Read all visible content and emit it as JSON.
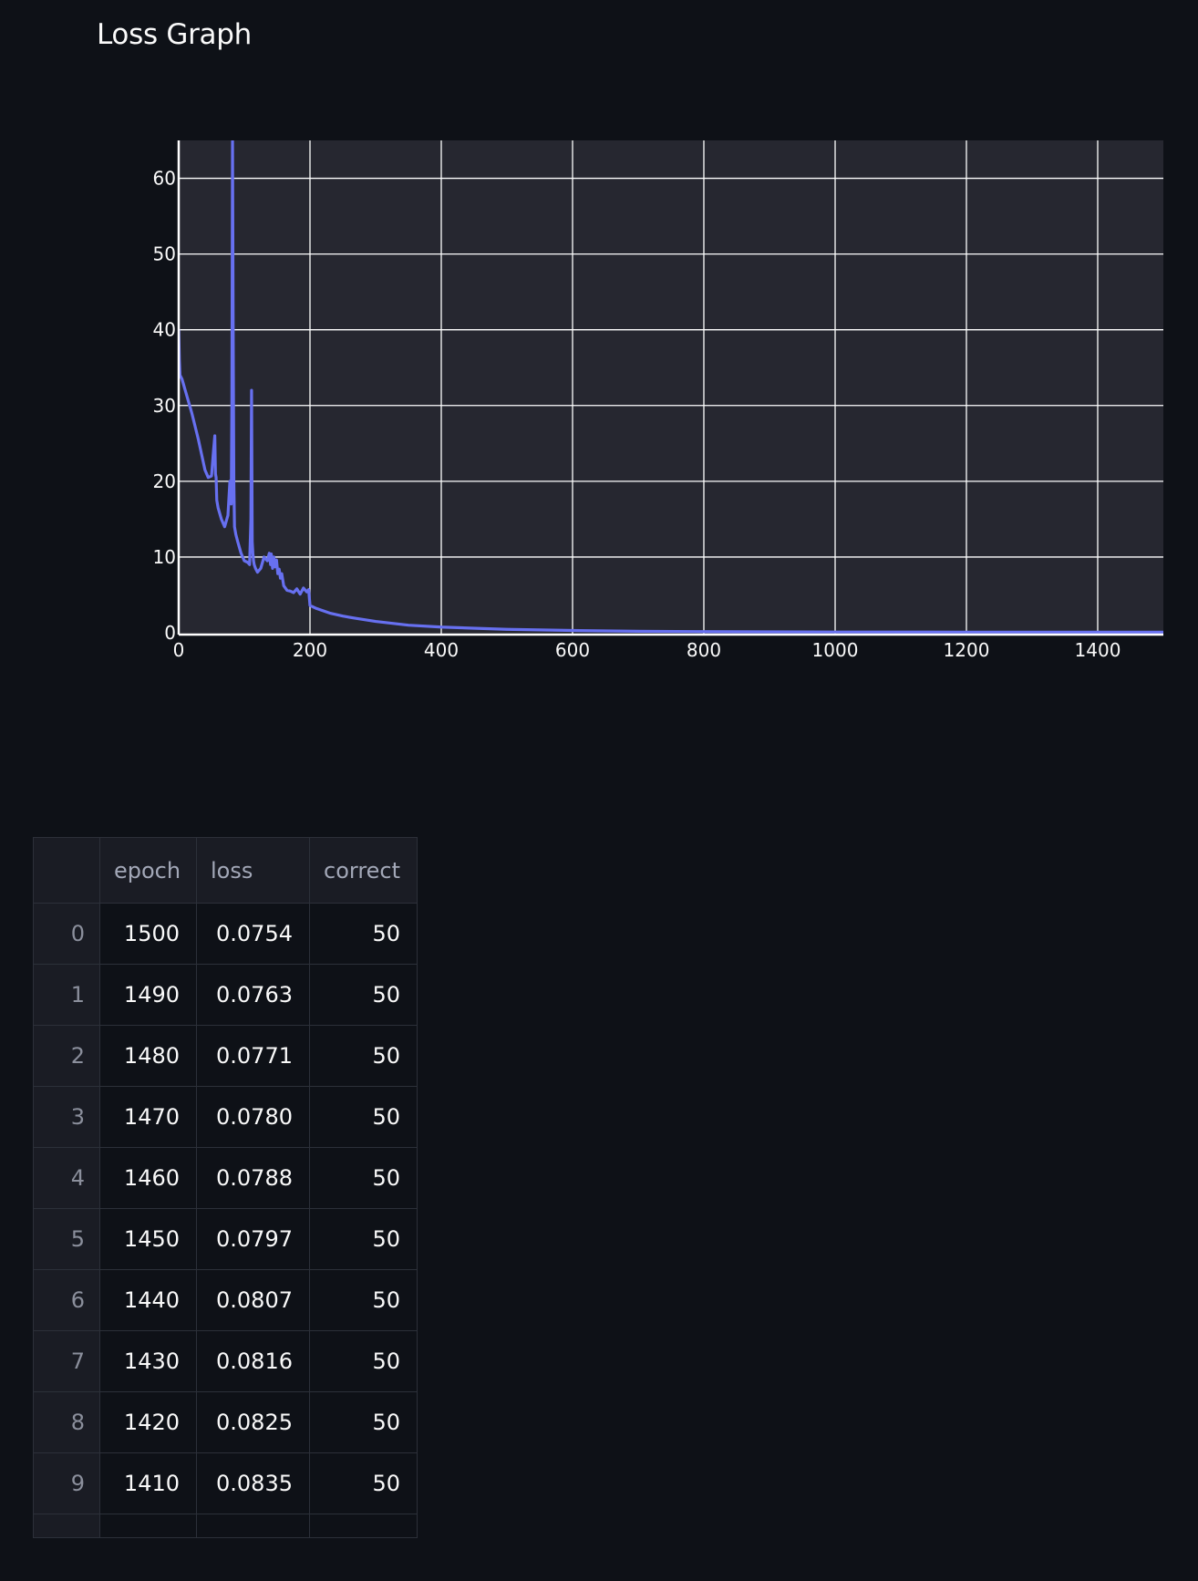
{
  "page": {
    "title": "Loss Graph"
  },
  "chart_data": {
    "type": "line",
    "title": "",
    "xlabel": "",
    "ylabel": "",
    "xlim": [
      0,
      1500
    ],
    "ylim": [
      0,
      65
    ],
    "x_ticks": [
      0,
      200,
      400,
      600,
      800,
      1000,
      1200,
      1400
    ],
    "y_ticks": [
      0,
      10,
      20,
      30,
      40,
      50,
      60
    ],
    "grid": true,
    "colors": {
      "line": "#6770f0",
      "plot_background": "#262730",
      "grid": "#ffffff",
      "tick_label": "#fafafa"
    },
    "series": [
      {
        "x": [
          0,
          1,
          2,
          5,
          10,
          20,
          30,
          40,
          45,
          50,
          53,
          55,
          56,
          57,
          58,
          60,
          65,
          70,
          75,
          78,
          80,
          81,
          82,
          83,
          84,
          85,
          86,
          87,
          90,
          95,
          100,
          105,
          108,
          110,
          111,
          112,
          113,
          114,
          115,
          117,
          120,
          125,
          130,
          135,
          138,
          140,
          141,
          143,
          145,
          147,
          149,
          151,
          153,
          155,
          157,
          160,
          165,
          170,
          175,
          180,
          185,
          190,
          195,
          198,
          200,
          210,
          220,
          230,
          250,
          270,
          300,
          350,
          400,
          500,
          600,
          700,
          800,
          900,
          1000,
          1100,
          1200,
          1300,
          1400,
          1500
        ],
        "y": [
          40,
          36,
          34,
          33.5,
          32,
          29,
          25.5,
          21.5,
          20.5,
          20.7,
          24,
          26,
          21,
          20.5,
          17.5,
          16.5,
          15,
          14,
          15.5,
          20,
          17,
          30,
          65,
          40,
          20,
          14,
          13.5,
          13,
          12,
          10.5,
          9.5,
          9.3,
          9,
          15,
          32,
          12,
          10.5,
          9.5,
          9,
          8.5,
          8,
          8.5,
          10,
          9.5,
          10.5,
          9,
          10.4,
          8.5,
          10,
          8.7,
          9.6,
          7.8,
          8.4,
          7.2,
          7.8,
          6.2,
          5.6,
          5.5,
          5.3,
          5.8,
          5.1,
          5.9,
          5.4,
          5.7,
          3.6,
          3.2,
          2.9,
          2.6,
          2.2,
          1.9,
          1.5,
          1.0,
          0.75,
          0.45,
          0.3,
          0.2,
          0.15,
          0.12,
          0.1,
          0.09,
          0.085,
          0.082,
          0.079,
          0.075
        ]
      }
    ]
  },
  "table": {
    "headers": [
      "",
      "epoch",
      "loss",
      "correct"
    ],
    "rows": [
      {
        "index": "0",
        "epoch": "1500",
        "loss": "0.0754",
        "correct": "50"
      },
      {
        "index": "1",
        "epoch": "1490",
        "loss": "0.0763",
        "correct": "50"
      },
      {
        "index": "2",
        "epoch": "1480",
        "loss": "0.0771",
        "correct": "50"
      },
      {
        "index": "3",
        "epoch": "1470",
        "loss": "0.0780",
        "correct": "50"
      },
      {
        "index": "4",
        "epoch": "1460",
        "loss": "0.0788",
        "correct": "50"
      },
      {
        "index": "5",
        "epoch": "1450",
        "loss": "0.0797",
        "correct": "50"
      },
      {
        "index": "6",
        "epoch": "1440",
        "loss": "0.0807",
        "correct": "50"
      },
      {
        "index": "7",
        "epoch": "1430",
        "loss": "0.0816",
        "correct": "50"
      },
      {
        "index": "8",
        "epoch": "1420",
        "loss": "0.0825",
        "correct": "50"
      },
      {
        "index": "9",
        "epoch": "1410",
        "loss": "0.0835",
        "correct": "50"
      }
    ]
  }
}
